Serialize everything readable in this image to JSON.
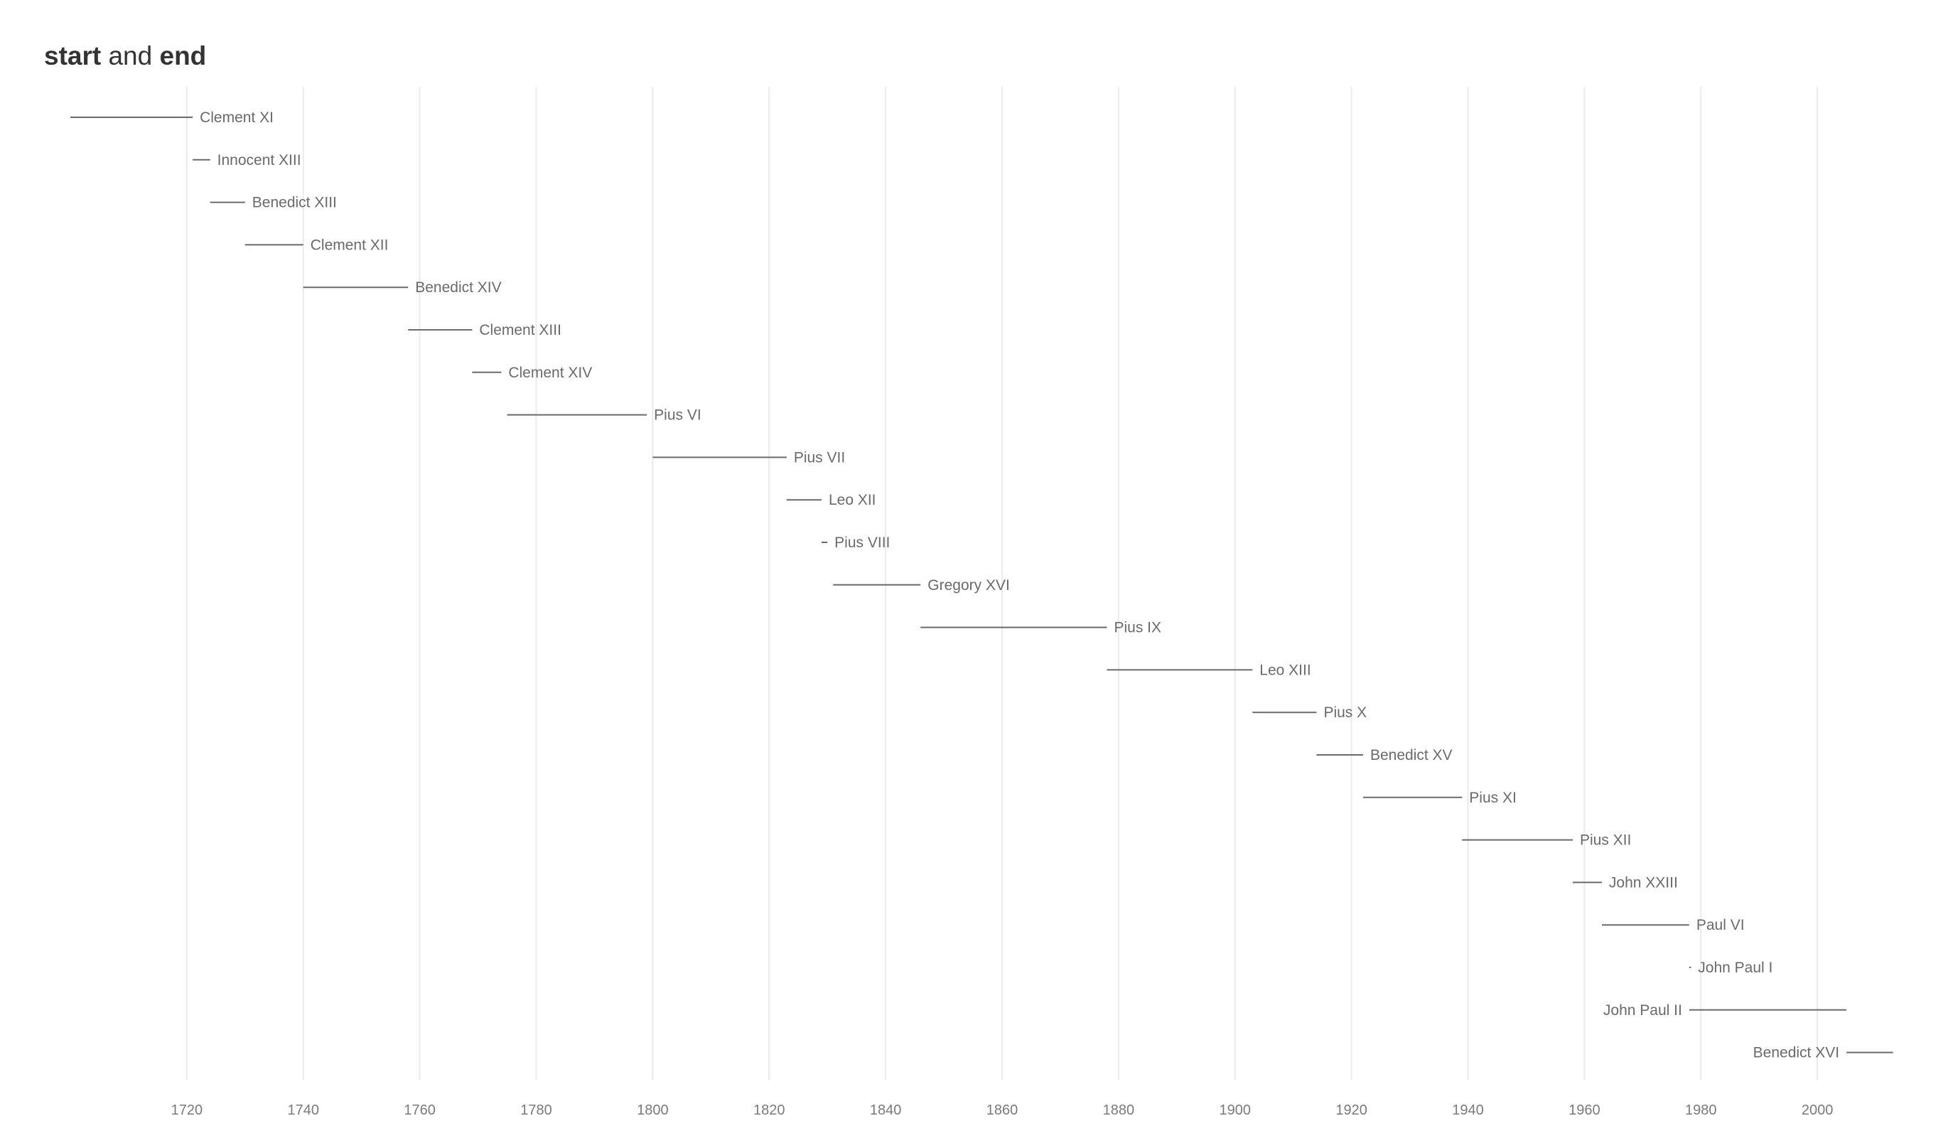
{
  "title": {
    "part1": "start",
    "part2": "and",
    "part3": "end"
  },
  "chart_data": {
    "type": "range",
    "title": "start and end",
    "xlabel": "",
    "ylabel": "",
    "xlim": [
      1700,
      2015
    ],
    "x_ticks": [
      1720,
      1740,
      1760,
      1780,
      1800,
      1820,
      1840,
      1860,
      1880,
      1900,
      1920,
      1940,
      1960,
      1980,
      2000
    ],
    "grid": true,
    "series": [
      {
        "label": "Clement XI",
        "start": 1700,
        "end": 1721
      },
      {
        "label": "Innocent XIII",
        "start": 1721,
        "end": 1724
      },
      {
        "label": "Benedict XIII",
        "start": 1724,
        "end": 1730
      },
      {
        "label": "Clement XII",
        "start": 1730,
        "end": 1740
      },
      {
        "label": "Benedict XIV",
        "start": 1740,
        "end": 1758
      },
      {
        "label": "Clement XIII",
        "start": 1758,
        "end": 1769
      },
      {
        "label": "Clement XIV",
        "start": 1769,
        "end": 1774
      },
      {
        "label": "Pius VI",
        "start": 1775,
        "end": 1799
      },
      {
        "label": "Pius VII",
        "start": 1800,
        "end": 1823
      },
      {
        "label": "Leo XII",
        "start": 1823,
        "end": 1829
      },
      {
        "label": "Pius VIII",
        "start": 1829,
        "end": 1830
      },
      {
        "label": "Gregory XVI",
        "start": 1831,
        "end": 1846
      },
      {
        "label": "Pius IX",
        "start": 1846,
        "end": 1878
      },
      {
        "label": "Leo XIII",
        "start": 1878,
        "end": 1903
      },
      {
        "label": "Pius X",
        "start": 1903,
        "end": 1914
      },
      {
        "label": "Benedict XV",
        "start": 1914,
        "end": 1922
      },
      {
        "label": "Pius XI",
        "start": 1922,
        "end": 1939
      },
      {
        "label": "Pius XII",
        "start": 1939,
        "end": 1958
      },
      {
        "label": "John XXIII",
        "start": 1958,
        "end": 1963
      },
      {
        "label": "Paul VI",
        "start": 1963,
        "end": 1978
      },
      {
        "label": "John Paul I",
        "start": 1978,
        "end": 1978.3
      },
      {
        "label": "John Paul II",
        "start": 1978,
        "end": 2005,
        "label_side": "left"
      },
      {
        "label": "Benedict XVI",
        "start": 2005,
        "end": 2013,
        "label_side": "left"
      }
    ]
  },
  "colors": {
    "line": "#6a6a6a",
    "label": "#6a6a6a",
    "grid": "#ebebeb",
    "tick": "#7a7a7a",
    "title": "#333333"
  }
}
